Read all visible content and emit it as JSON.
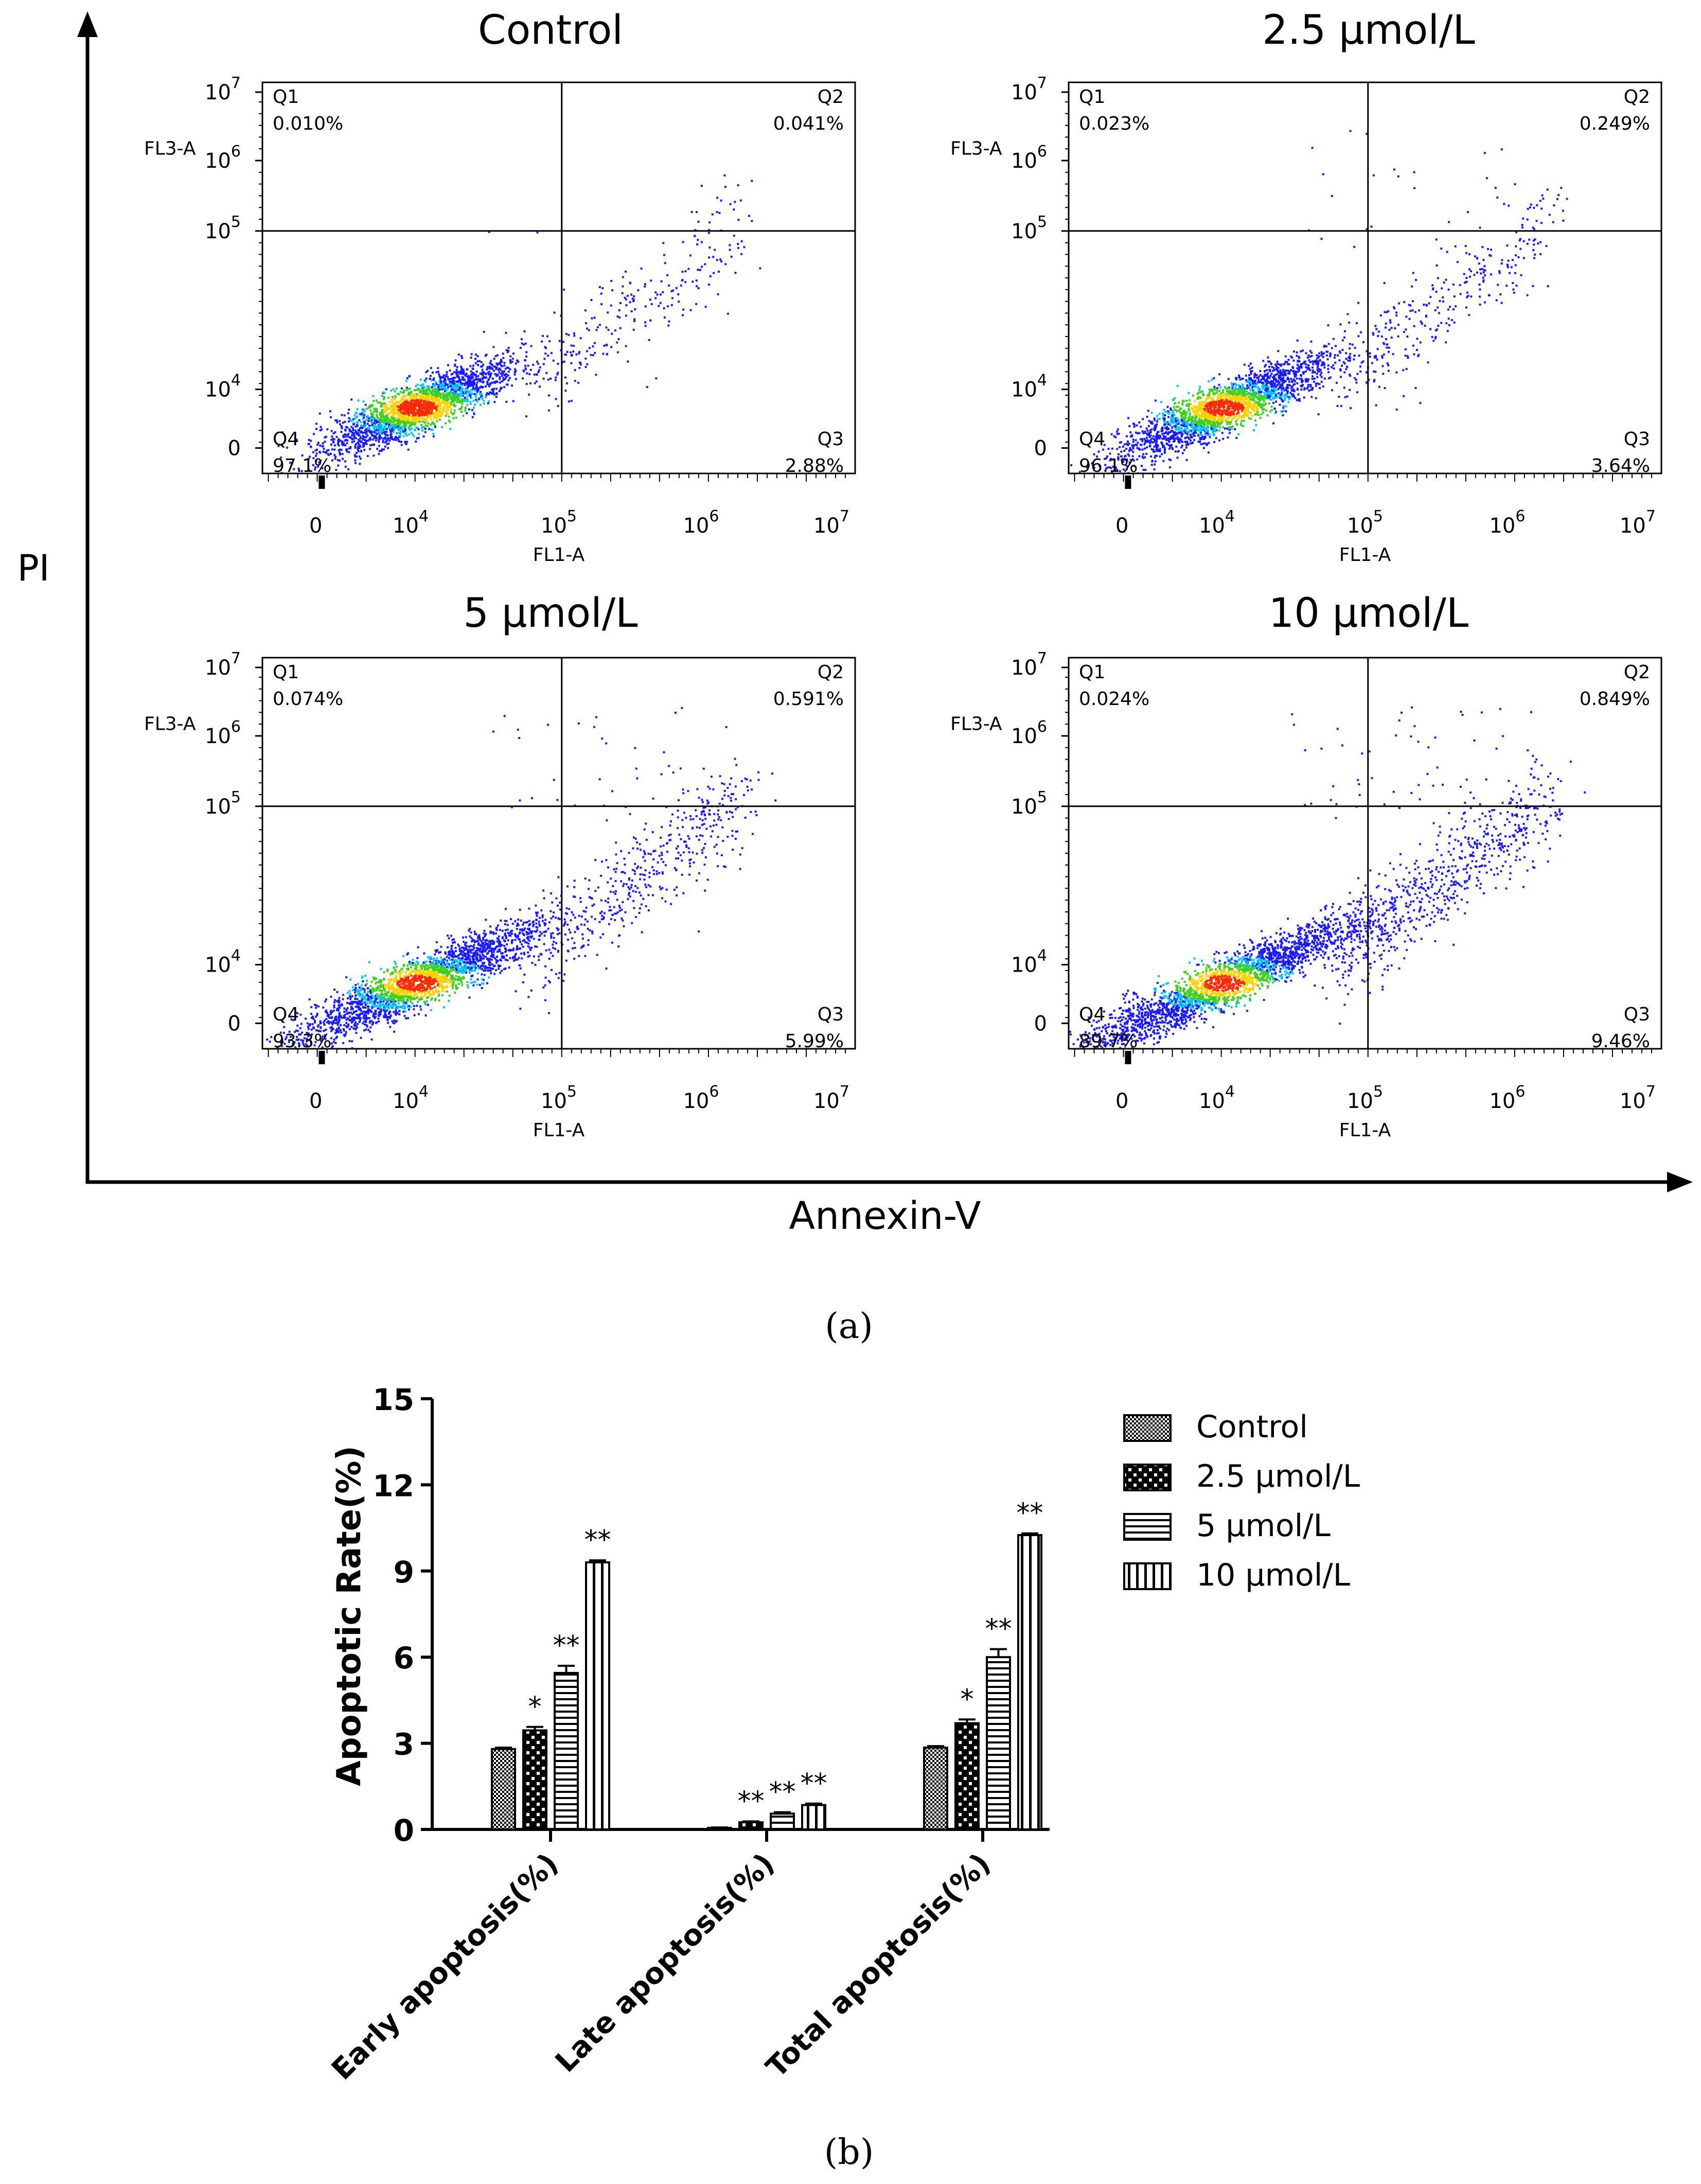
{
  "panel_a": {
    "caption": "(a)",
    "y_axis_label": "PI",
    "x_axis_label": "Annexin-V"
  },
  "panel_b": {
    "caption": "(b)"
  },
  "colors": {
    "axis": "#000000",
    "dot_low": "#1a1aff",
    "dot_mid": "#00c8ff",
    "dot_high": "#39d21d",
    "dot_peak": "#ffd200",
    "dot_core": "#ff2a00"
  },
  "chart_data": [
    {
      "type": "scatter",
      "title": "Control",
      "xlabel": "FL1-A",
      "ylabel": "FL3-A",
      "x_ticks": [
        "0",
        "10^4",
        "10^5",
        "10^6",
        "10^7"
      ],
      "y_ticks": [
        "0",
        "10^4",
        "10^5",
        "10^6",
        "10^7"
      ],
      "gate_x": 100000,
      "gate_y": 100000,
      "quadrants": [
        {
          "name": "Q1",
          "value": "0.010%"
        },
        {
          "name": "Q2",
          "value": "0.041%"
        },
        {
          "name": "Q3",
          "value": "2.88%"
        },
        {
          "name": "Q4",
          "value": "97.1%"
        }
      ]
    },
    {
      "type": "scatter",
      "title": "2.5 μmol/L",
      "xlabel": "FL1-A",
      "ylabel": "FL3-A",
      "x_ticks": [
        "0",
        "10^4",
        "10^5",
        "10^6",
        "10^7"
      ],
      "y_ticks": [
        "0",
        "10^4",
        "10^5",
        "10^6",
        "10^7"
      ],
      "gate_x": 100000,
      "gate_y": 100000,
      "quadrants": [
        {
          "name": "Q1",
          "value": "0.023%"
        },
        {
          "name": "Q2",
          "value": "0.249%"
        },
        {
          "name": "Q3",
          "value": "3.64%"
        },
        {
          "name": "Q4",
          "value": "96.1%"
        }
      ]
    },
    {
      "type": "scatter",
      "title": "5 μmol/L",
      "xlabel": "FL1-A",
      "ylabel": "FL3-A",
      "x_ticks": [
        "0",
        "10^4",
        "10^5",
        "10^6",
        "10^7"
      ],
      "y_ticks": [
        "0",
        "10^4",
        "10^5",
        "10^6",
        "10^7"
      ],
      "gate_x": 100000,
      "gate_y": 100000,
      "quadrants": [
        {
          "name": "Q1",
          "value": "0.074%"
        },
        {
          "name": "Q2",
          "value": "0.591%"
        },
        {
          "name": "Q3",
          "value": "5.99%"
        },
        {
          "name": "Q4",
          "value": "93.3%"
        }
      ]
    },
    {
      "type": "scatter",
      "title": "10 μmol/L",
      "xlabel": "FL1-A",
      "ylabel": "FL3-A",
      "x_ticks": [
        "0",
        "10^4",
        "10^5",
        "10^6",
        "10^7"
      ],
      "y_ticks": [
        "0",
        "10^4",
        "10^5",
        "10^6",
        "10^7"
      ],
      "gate_x": 100000,
      "gate_y": 100000,
      "quadrants": [
        {
          "name": "Q1",
          "value": "0.024%"
        },
        {
          "name": "Q2",
          "value": "0.849%"
        },
        {
          "name": "Q3",
          "value": "9.46%"
        },
        {
          "name": "Q4",
          "value": "89.7%"
        }
      ]
    },
    {
      "type": "bar",
      "title": "",
      "xlabel": "",
      "ylabel": "Apoptotic Rate(%)",
      "ylim": [
        0,
        15
      ],
      "y_ticks": [
        "0",
        "3",
        "6",
        "9",
        "12",
        "15"
      ],
      "categories": [
        "Early apoptosis(%)",
        "Late apoptosis(%)",
        "Total apoptosis(%)"
      ],
      "series": [
        {
          "name": "Control",
          "pattern": "checker-fine",
          "values": [
            2.8,
            0.05,
            2.85
          ],
          "errors": [
            0.05,
            0.02,
            0.05
          ],
          "significance": [
            "",
            "",
            ""
          ]
        },
        {
          "name": "2.5 μmol/L",
          "pattern": "checker-coarse",
          "values": [
            3.45,
            0.25,
            3.7
          ],
          "errors": [
            0.12,
            0.03,
            0.13
          ],
          "significance": [
            "*",
            "**",
            "*"
          ]
        },
        {
          "name": "5 μmol/L",
          "pattern": "horizontal",
          "values": [
            5.45,
            0.55,
            6.0
          ],
          "errors": [
            0.25,
            0.05,
            0.28
          ],
          "significance": [
            "**",
            "**",
            "**"
          ]
        },
        {
          "name": "10 μmol/L",
          "pattern": "vertical",
          "values": [
            9.3,
            0.85,
            10.25
          ],
          "errors": [
            0.07,
            0.05,
            0.06
          ],
          "significance": [
            "**",
            "**",
            "**"
          ]
        }
      ],
      "legend_position": "top-right"
    }
  ]
}
